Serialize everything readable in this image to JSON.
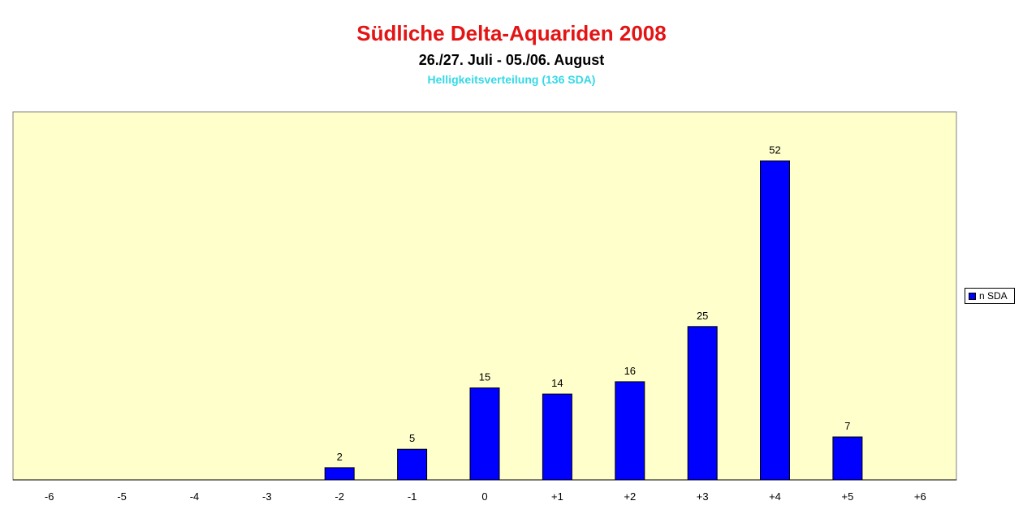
{
  "chart_data": {
    "type": "bar",
    "title": "Südliche Delta-Aquariden 2008",
    "subtitle": "26./27. Juli - 05./06. August",
    "subtitle2": "Helligkeitsverteilung (136 SDA)",
    "categories": [
      "-6",
      "-5",
      "-4",
      "-3",
      "-2",
      "-1",
      "0",
      "+1",
      "+2",
      "+3",
      "+4",
      "+5",
      "+6"
    ],
    "series": [
      {
        "name": "n SDA",
        "values": [
          0,
          0,
          0,
          0,
          2,
          5,
          15,
          14,
          16,
          25,
          52,
          7,
          0
        ],
        "color": "#0000ff"
      }
    ],
    "data_labels": [
      "",
      "",
      "",
      "",
      "2",
      "5",
      "15",
      "14",
      "16",
      "25",
      "52",
      "7",
      ""
    ],
    "ylim": [
      0,
      60
    ],
    "xlabel": "",
    "ylabel": "",
    "plot_background": "#ffffcc",
    "grid": false,
    "legend_position": "right"
  }
}
